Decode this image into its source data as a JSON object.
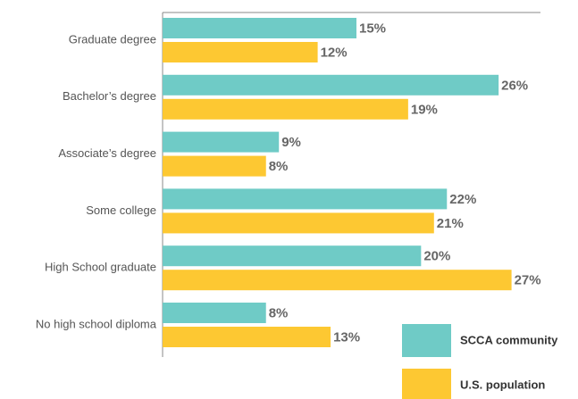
{
  "chart_data": {
    "type": "bar",
    "orientation": "horizontal",
    "categories": [
      "Graduate degree",
      "Bachelor’s degree",
      "Associate’s degree",
      "Some college",
      "High School graduate",
      "No high school diploma"
    ],
    "series": [
      {
        "name": "SCCA community",
        "color": "#6fcbc6",
        "values": [
          15,
          26,
          9,
          22,
          20,
          8
        ],
        "value_labels": [
          "15%",
          "26%",
          "9%",
          "22%",
          "20%",
          "8%"
        ]
      },
      {
        "name": "U.S. population",
        "color": "#fdc832",
        "values": [
          12,
          19,
          8,
          21,
          27,
          13
        ],
        "value_labels": [
          "12%",
          "19%",
          "8%",
          "21%",
          "27%",
          "13%"
        ]
      }
    ],
    "xlim": [
      0,
      30
    ],
    "legend": "lower right"
  }
}
